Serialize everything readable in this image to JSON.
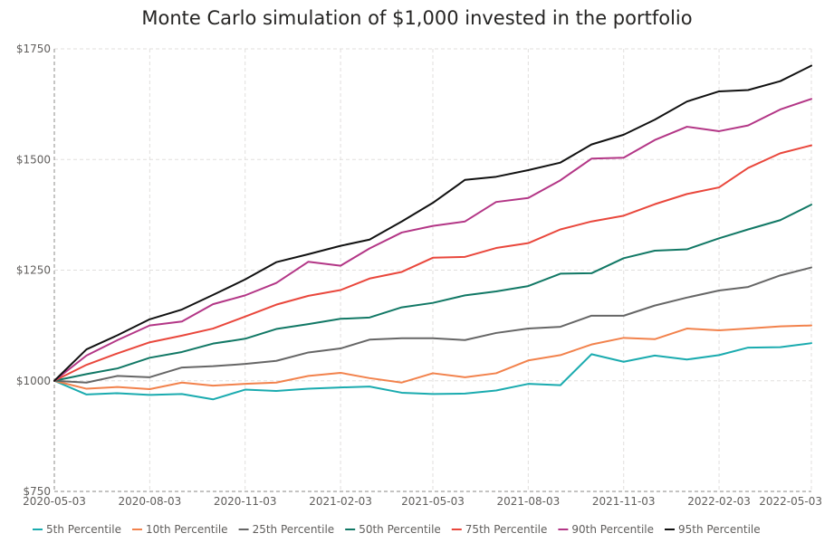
{
  "chart_data": {
    "type": "line",
    "title": "Monte Carlo simulation of $1,000 invested in the portfolio",
    "xlabel": "",
    "ylabel": "",
    "ylim": [
      750,
      1750
    ],
    "y_ticks": [
      750,
      1000,
      1250,
      1500,
      1750
    ],
    "y_tick_labels": [
      "$750",
      "$1000",
      "$1250",
      "$1500",
      "$1750"
    ],
    "x_ticks": [
      "2020-05-03",
      "2020-08-03",
      "2020-11-03",
      "2021-02-03",
      "2021-05-03",
      "2021-08-03",
      "2021-11-03",
      "2022-02-03",
      "2022-05-03"
    ],
    "x_tick_labels": [
      "2020-05-03",
      "2020-08-03",
      "2020-11-03",
      "2021-02-03",
      "2021-05-03",
      "2021-08-03",
      "2021-11-03",
      "2022-02-03",
      "2022-05-03"
    ],
    "grid": true,
    "legend_position": "bottom",
    "x": [
      "2020-05-03",
      "2020-06-03",
      "2020-07-03",
      "2020-08-03",
      "2020-09-03",
      "2020-10-03",
      "2020-11-03",
      "2020-12-03",
      "2021-01-03",
      "2021-02-03",
      "2021-03-03",
      "2021-04-03",
      "2021-05-03",
      "2021-06-03",
      "2021-07-03",
      "2021-08-03",
      "2021-09-03",
      "2021-10-03",
      "2021-11-03",
      "2021-12-03",
      "2022-01-03",
      "2022-02-03",
      "2022-03-03",
      "2022-04-03",
      "2022-05-03"
    ],
    "series": [
      {
        "name": "5th Percentile",
        "color": "#1aabaf",
        "values": [
          1000,
          969,
          972,
          968,
          970,
          958,
          980,
          977,
          982,
          985,
          987,
          973,
          970,
          971,
          978,
          993,
          990,
          1060,
          1043,
          1057,
          1048,
          1058,
          1075,
          1076,
          1085
        ]
      },
      {
        "name": "10th Percentile",
        "color": "#f2824c",
        "values": [
          1000,
          982,
          986,
          981,
          996,
          989,
          993,
          996,
          1011,
          1018,
          1006,
          996,
          1017,
          1008,
          1017,
          1046,
          1058,
          1082,
          1097,
          1094,
          1118,
          1114,
          1118,
          1123,
          1125
        ]
      },
      {
        "name": "25th Percentile",
        "color": "#666666",
        "values": [
          1000,
          996,
          1011,
          1008,
          1030,
          1033,
          1038,
          1045,
          1064,
          1073,
          1093,
          1096,
          1096,
          1092,
          1108,
          1118,
          1122,
          1147,
          1147,
          1170,
          1188,
          1204,
          1212,
          1238,
          1256
        ]
      },
      {
        "name": "50th Percentile",
        "color": "#117865",
        "values": [
          1000,
          1015,
          1028,
          1052,
          1065,
          1084,
          1095,
          1117,
          1128,
          1140,
          1143,
          1166,
          1176,
          1193,
          1202,
          1214,
          1242,
          1243,
          1277,
          1294,
          1297,
          1322,
          1342,
          1363,
          1398
        ]
      },
      {
        "name": "75th Percentile",
        "color": "#e9473c",
        "values": [
          1000,
          1036,
          1062,
          1087,
          1102,
          1118,
          1145,
          1172,
          1192,
          1205,
          1231,
          1246,
          1278,
          1280,
          1300,
          1311,
          1342,
          1360,
          1373,
          1399,
          1422,
          1437,
          1481,
          1514,
          1532
        ]
      },
      {
        "name": "90th Percentile",
        "color": "#b33686",
        "values": [
          1000,
          1057,
          1092,
          1125,
          1134,
          1173,
          1193,
          1221,
          1269,
          1260,
          1299,
          1335,
          1350,
          1360,
          1404,
          1413,
          1453,
          1502,
          1504,
          1544,
          1574,
          1564,
          1577,
          1613,
          1637
        ]
      },
      {
        "name": "95th Percentile",
        "color": "#111111",
        "values": [
          1000,
          1071,
          1103,
          1139,
          1161,
          1194,
          1229,
          1268,
          1286,
          1305,
          1319,
          1360,
          1402,
          1454,
          1461,
          1476,
          1493,
          1534,
          1556,
          1590,
          1631,
          1654,
          1657,
          1677,
          1712
        ]
      }
    ]
  },
  "colors": {
    "grid": "#e1dfdd",
    "axis": "#c8c6c4",
    "text": "#605e5c",
    "title": "#252423"
  }
}
